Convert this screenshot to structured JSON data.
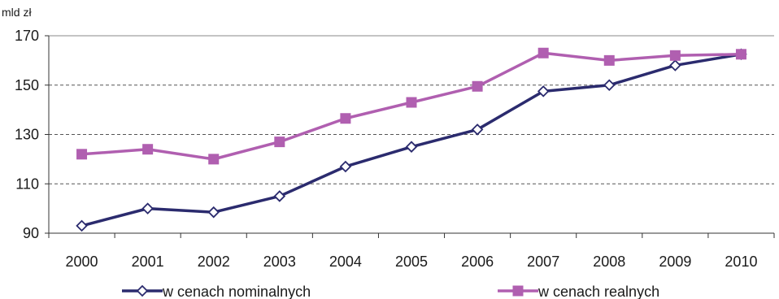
{
  "chart_data": {
    "type": "line",
    "ylabel": "mld zł",
    "ylim": [
      90,
      170
    ],
    "yticks": [
      90,
      110,
      130,
      150,
      170
    ],
    "grid": "horizontal dashed",
    "legend_position": "bottom",
    "categories": [
      "2000",
      "2001",
      "2002",
      "2003",
      "2004",
      "2005",
      "2006",
      "2007",
      "2008",
      "2009",
      "2010"
    ],
    "series": [
      {
        "name": "w cenach nominalnych",
        "color": "#2b2b6e",
        "marker": "diamond-open",
        "values": [
          93,
          100,
          98.5,
          105,
          117,
          125,
          132,
          147.5,
          150,
          158,
          162.5
        ]
      },
      {
        "name": "w cenach realnych",
        "color": "#b05fb0",
        "marker": "square-filled",
        "values": [
          122,
          124,
          120,
          127,
          136.5,
          143,
          149.5,
          163,
          160,
          162,
          162.5
        ]
      }
    ]
  }
}
